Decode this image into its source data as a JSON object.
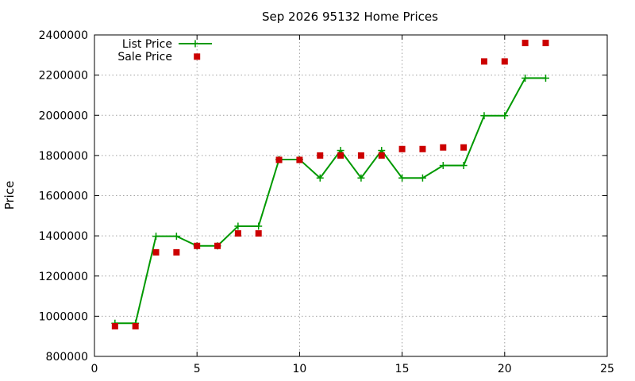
{
  "chart_data": {
    "type": "line",
    "title": "Sep 2026 95132 Home Prices",
    "xlabel": "",
    "ylabel": "Price",
    "xlim": [
      0,
      25
    ],
    "ylim": [
      800000,
      2400000
    ],
    "x_ticks": [
      "0",
      "5",
      "10",
      "15",
      "20",
      "25"
    ],
    "y_ticks": [
      "800000",
      "1000000",
      "1200000",
      "1400000",
      "1600000",
      "1800000",
      "2000000",
      "2200000",
      "2400000"
    ],
    "grid": true,
    "legend_position": "top-left",
    "series": [
      {
        "name": "List Price",
        "style": "line-with-plus-markers",
        "color": "#009900",
        "x": [
          1,
          2,
          3,
          4,
          5,
          6,
          7,
          8,
          9,
          10,
          11,
          12,
          13,
          14,
          15,
          16,
          17,
          18,
          19,
          20,
          21,
          22
        ],
        "y": [
          965000,
          965000,
          1398000,
          1398000,
          1350000,
          1350000,
          1448000,
          1448000,
          1780000,
          1780000,
          1688000,
          1825000,
          1688000,
          1825000,
          1688000,
          1688000,
          1750000,
          1750000,
          1998000,
          1998000,
          2185000,
          2185000
        ]
      },
      {
        "name": "Sale Price",
        "style": "square-markers",
        "color": "#cc0000",
        "x": [
          1,
          2,
          3,
          4,
          5,
          6,
          7,
          8,
          9,
          10,
          11,
          12,
          13,
          14,
          15,
          16,
          17,
          18,
          19,
          20,
          21,
          22
        ],
        "y": [
          950000,
          950000,
          1318000,
          1318000,
          1350000,
          1350000,
          1412000,
          1412000,
          1778000,
          1778000,
          1800000,
          1800000,
          1800000,
          1800000,
          1832000,
          1832000,
          1840000,
          1840000,
          2268000,
          2268000,
          2360000,
          2360000
        ]
      }
    ],
    "legend_extra_points": [
      {
        "series": "Sale Price",
        "x": 5,
        "y": 2292000
      }
    ]
  }
}
